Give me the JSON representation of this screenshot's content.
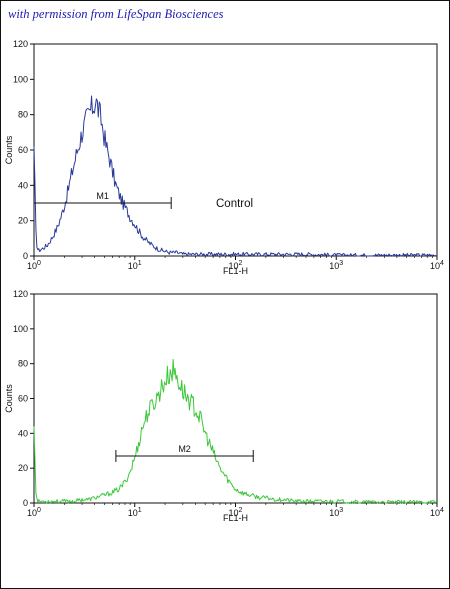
{
  "credit": "with permission from LifeSpan Biosciences",
  "colors": {
    "top_series": "#2a3b9a",
    "bottom_series": "#3cc83c",
    "axis": "#111111",
    "credit": "#1b1bb0"
  },
  "chart_data": [
    {
      "type": "line",
      "xscale": "log",
      "xlim": [
        1,
        10000
      ],
      "ylim": [
        0,
        120
      ],
      "xlabel": "FL1-H",
      "ylabel": "Counts",
      "x_tick_labels": [
        "10^0",
        "10^1",
        "10^2",
        "10^3",
        "10^4"
      ],
      "y_tick_labels": [
        "0",
        "20",
        "40",
        "60",
        "80",
        "100",
        "120"
      ],
      "grid": false,
      "series": [
        {
          "color": "#2a3b9a",
          "x": [
            1.0,
            1.05,
            1.1,
            1.2,
            1.35,
            1.5,
            1.7,
            1.9,
            2.1,
            2.4,
            2.7,
            3.0,
            3.3,
            3.6,
            3.9,
            4.1,
            4.3,
            4.6,
            4.9,
            5.2,
            5.6,
            6.0,
            6.5,
            7.0,
            7.6,
            8.3,
            9.0,
            10.0,
            11.0,
            12.0,
            13.5,
            15.0,
            17.0,
            19.0,
            22.0,
            26.0,
            30.0,
            40.0,
            60.0,
            100.0,
            200.0,
            500.0,
            1000.0,
            3000.0,
            10000.0
          ],
          "y": [
            62,
            8,
            3,
            4,
            6,
            10,
            16,
            24,
            33,
            48,
            60,
            70,
            77,
            82,
            85,
            88,
            84,
            78,
            70,
            62,
            56,
            48,
            40,
            35,
            30,
            26,
            22,
            18,
            14,
            11,
            8,
            6,
            4,
            3,
            2,
            2,
            1,
            1,
            1,
            1,
            1,
            1,
            0.5,
            0.5,
            0.5
          ]
        }
      ],
      "markers": [
        {
          "label": "M1",
          "x_start": 1.0,
          "x_end": 23.0,
          "y": 30
        }
      ],
      "annotations": [
        "Control"
      ]
    },
    {
      "type": "line",
      "xscale": "log",
      "xlim": [
        1,
        10000
      ],
      "ylim": [
        0,
        120
      ],
      "xlabel": "FL1-H",
      "ylabel": "Counts",
      "x_tick_labels": [
        "10^0",
        "10^1",
        "10^2",
        "10^3",
        "10^4"
      ],
      "y_tick_labels": [
        "0",
        "20",
        "40",
        "60",
        "80",
        "100",
        "120"
      ],
      "grid": false,
      "series": [
        {
          "color": "#3cc83c",
          "x": [
            1.0,
            1.05,
            1.1,
            1.3,
            1.6,
            2.0,
            2.5,
            3.0,
            3.5,
            4.0,
            4.6,
            5.3,
            6.0,
            7.0,
            8.0,
            9.0,
            10.0,
            11.0,
            12.0,
            13.5,
            15.0,
            16.5,
            18.0,
            20.0,
            22.0,
            24.0,
            26.0,
            29.0,
            32.0,
            36.0,
            40.0,
            45.0,
            50.0,
            56.0,
            63.0,
            70.0,
            80.0,
            90.0,
            100.0,
            115.0,
            130.0,
            150.0,
            175.0,
            200.0,
            250.0,
            300.0,
            400.0,
            600.0,
            1000.0,
            2000.0,
            5000.0,
            10000.0
          ],
          "y": [
            44,
            3,
            1,
            1,
            1,
            1,
            1,
            2,
            2,
            3,
            4,
            5,
            6,
            8,
            12,
            18,
            26,
            35,
            44,
            52,
            56,
            60,
            65,
            70,
            74,
            76,
            73,
            66,
            62,
            58,
            54,
            48,
            40,
            33,
            26,
            20,
            15,
            11,
            8,
            6,
            5,
            4,
            3,
            3,
            2,
            2,
            1,
            1,
            1,
            0.5,
            0.5,
            0.5
          ]
        }
      ],
      "markers": [
        {
          "label": "M2",
          "x_start": 6.5,
          "x_end": 150.0,
          "y": 27
        }
      ],
      "annotations": []
    }
  ]
}
